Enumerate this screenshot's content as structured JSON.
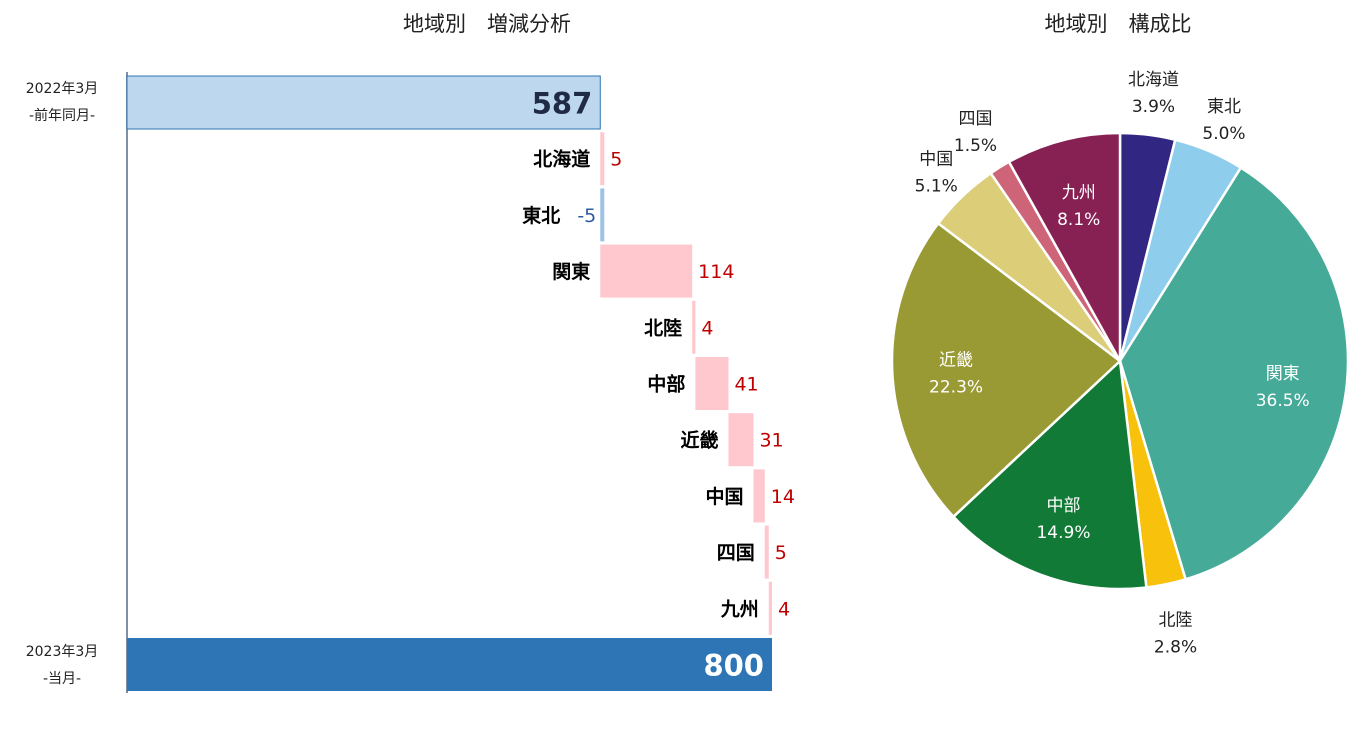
{
  "charts": {
    "waterfall": {
      "title": "地域別　増減分析",
      "start": {
        "period": "2022年3月",
        "sub": "-前年同月-",
        "value": 587
      },
      "end": {
        "period": "2023年3月",
        "sub": "-当月-",
        "value": 800
      },
      "colors": {
        "start": "#bdd7ee",
        "end": "#2e75b6",
        "positive": "#ffc7ce",
        "negative": "#9dc3e6",
        "pos_text": "#c00000",
        "neg_text": "#2e5c9e",
        "axis": "#7f8fa6"
      }
    },
    "pie": {
      "title": "地域別　構成比"
    }
  },
  "chart_data": [
    {
      "type": "bar",
      "subtype": "waterfall",
      "title": "地域別　増減分析",
      "orientation": "horizontal",
      "categories": [
        "北海道",
        "東北",
        "関東",
        "北陸",
        "中部",
        "近畿",
        "中国",
        "四国",
        "九州"
      ],
      "values": [
        5,
        -5,
        114,
        4,
        41,
        31,
        14,
        5,
        4
      ],
      "start_total": 587,
      "end_total": 800
    },
    {
      "type": "pie",
      "title": "地域別　構成比",
      "labels": [
        "北海道",
        "東北",
        "関東",
        "北陸",
        "中部",
        "近畿",
        "中国",
        "四国",
        "九州"
      ],
      "values": [
        3.9,
        5.0,
        36.5,
        2.8,
        14.9,
        22.3,
        5.1,
        1.5,
        8.1
      ],
      "value_labels": [
        "3.9%",
        "5.0%",
        "36.5%",
        "2.8%",
        "14.9%",
        "22.3%",
        "5.1%",
        "1.5%",
        "8.1%"
      ],
      "colors": [
        "#322683",
        "#8ecdec",
        "#45aa98",
        "#f8c10c",
        "#127a37",
        "#9a9a35",
        "#dccd78",
        "#cd6477",
        "#882153"
      ],
      "label_placement": [
        "outside",
        "outside",
        "inside",
        "outside",
        "inside",
        "inside",
        "outside",
        "outside",
        "inside"
      ]
    }
  ]
}
